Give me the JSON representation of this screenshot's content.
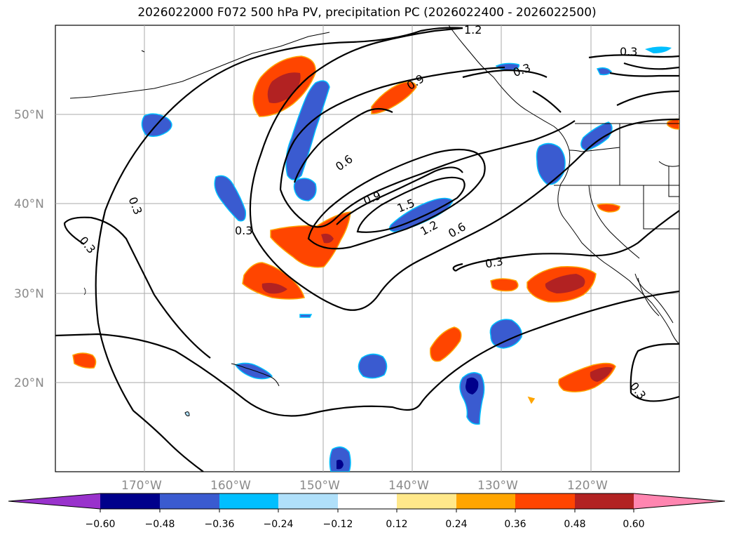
{
  "title": "2026022000 F072 500 hPa PV, precipitation PC (2026022400 - 2026022500)",
  "map": {
    "lon_labels": [
      "170°W",
      "160°W",
      "150°W",
      "140°W",
      "130°W",
      "120°W"
    ],
    "lat_labels": [
      "50°N",
      "40°N",
      "30°N",
      "20°N"
    ],
    "contour_labels": [
      "1.2",
      "0.3",
      "0.9",
      "0.3",
      "0.6",
      "0.9",
      "1.5",
      "1.2",
      "0.6",
      "0.3",
      "0.3",
      "0.3",
      "0.3",
      "0.3"
    ],
    "grid_color": "#aaaaaa",
    "coastline_color": "#000000"
  },
  "colorbar": {
    "ticks": [
      "−0.60",
      "−0.48",
      "−0.36",
      "−0.24",
      "−0.12",
      "0.12",
      "0.24",
      "0.36",
      "0.48",
      "0.60"
    ],
    "colors": [
      "#9932cc",
      "#00008b",
      "#3a5bd0",
      "#00bfff",
      "#b0e0fa",
      "#ffffff",
      "#ffe88a",
      "#ffa500",
      "#ff4500",
      "#b22222",
      "#ff85b0"
    ]
  }
}
